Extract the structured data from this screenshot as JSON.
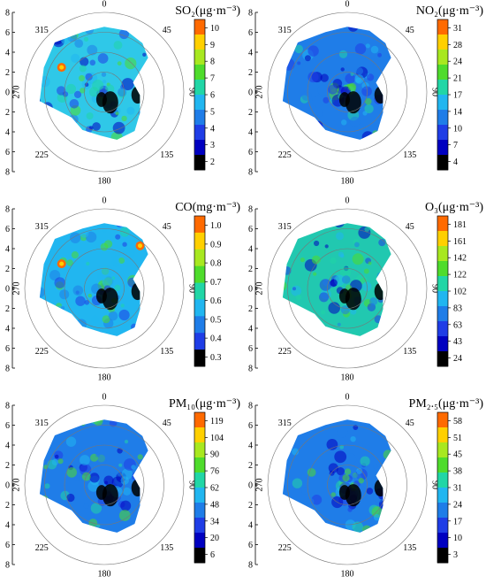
{
  "figure_caption": "",
  "chart_data": [
    {
      "type": "polar-heatmap",
      "title": "SO₂(μg·m⁻³)",
      "pollutant": "SO2",
      "unit": "μg·m⁻³",
      "angle_labels": [
        "0",
        "45",
        "90",
        "135",
        "180",
        "225",
        "270",
        "315"
      ],
      "radial_ticks": [
        "8",
        "6",
        "4",
        "2",
        "0",
        "2",
        "4",
        "6",
        "8"
      ],
      "colorbar_ticks": [
        "10",
        "9",
        "8",
        "7",
        "6",
        "5",
        "4",
        "3",
        "2"
      ],
      "colorbar_colors": [
        "#ff6a00",
        "#ffd000",
        "#a8e820",
        "#4fdc2c",
        "#21d6a6",
        "#21b6f0",
        "#1f7de8",
        "#1f3de6",
        "#0000c0",
        "#000000"
      ],
      "low_region_color": "#000000",
      "high_hotspots": 1,
      "dominant_color": "#2fc8e8"
    },
    {
      "type": "polar-heatmap",
      "title": "NO₂(μg·m⁻³)",
      "pollutant": "NO2",
      "unit": "μg·m⁻³",
      "angle_labels": [
        "0",
        "45",
        "90",
        "135",
        "180",
        "225",
        "270",
        "315"
      ],
      "radial_ticks": [
        "8",
        "6",
        "4",
        "2",
        "0",
        "2",
        "4",
        "6",
        "8"
      ],
      "colorbar_ticks": [
        "31",
        "28",
        "24",
        "21",
        "17",
        "14",
        "10",
        "7",
        "4"
      ],
      "colorbar_colors": [
        "#ff6a00",
        "#ffd000",
        "#a8e820",
        "#4fdc2c",
        "#21d6a6",
        "#21b6f0",
        "#1f7de8",
        "#1f3de6",
        "#0000c0",
        "#000000"
      ],
      "low_region_color": "#000000",
      "high_hotspots": 0,
      "dominant_color": "#1f7de8"
    },
    {
      "type": "polar-heatmap",
      "title": "CO(mg·m⁻³)",
      "pollutant": "CO",
      "unit": "mg·m⁻³",
      "angle_labels": [
        "0",
        "45",
        "90",
        "135",
        "180",
        "225",
        "270",
        "315"
      ],
      "radial_ticks": [
        "8",
        "6",
        "4",
        "2",
        "0",
        "2",
        "4",
        "6",
        "8"
      ],
      "colorbar_ticks": [
        "1.0",
        "0.9",
        "0.8",
        "0.7",
        "0.6",
        "0.5",
        "0.4",
        "0.3"
      ],
      "colorbar_colors": [
        "#ff6a00",
        "#ffd000",
        "#a8e820",
        "#4fdc2c",
        "#21d6a6",
        "#21b6f0",
        "#1f7de8",
        "#1f3de6",
        "#000000"
      ],
      "low_region_color": "#000000",
      "high_hotspots": 3,
      "dominant_color": "#21b6f0"
    },
    {
      "type": "polar-heatmap",
      "title": "O₃(μg·m⁻³)",
      "pollutant": "O3",
      "unit": "μg·m⁻³",
      "angle_labels": [
        "0",
        "45",
        "90",
        "135",
        "180",
        "225",
        "270",
        "315"
      ],
      "radial_ticks": [
        "8",
        "6",
        "4",
        "2",
        "0",
        "2",
        "4",
        "6",
        "8"
      ],
      "colorbar_ticks": [
        "181",
        "161",
        "142",
        "122",
        "102",
        "83",
        "63",
        "43",
        "24"
      ],
      "colorbar_colors": [
        "#ff6a00",
        "#ffd000",
        "#a8e820",
        "#4fdc2c",
        "#21d6a6",
        "#21b6f0",
        "#1f7de8",
        "#1f3de6",
        "#0000c0",
        "#000000"
      ],
      "low_region_color": "#000000",
      "high_hotspots": 0,
      "dominant_color": "#21c8b0"
    },
    {
      "type": "polar-heatmap",
      "title": "PM₁₀(μg·m⁻³)",
      "pollutant": "PM10",
      "unit": "μg·m⁻³",
      "angle_labels": [
        "0",
        "45",
        "90",
        "135",
        "180",
        "225",
        "270",
        "315"
      ],
      "radial_ticks": [
        "8",
        "6",
        "4",
        "2",
        "0",
        "2",
        "4",
        "6",
        "8"
      ],
      "colorbar_ticks": [
        "119",
        "104",
        "90",
        "76",
        "62",
        "48",
        "34",
        "20",
        "6"
      ],
      "colorbar_colors": [
        "#ff6a00",
        "#ffd000",
        "#a8e820",
        "#4fdc2c",
        "#21d6a6",
        "#21b6f0",
        "#1f7de8",
        "#1f3de6",
        "#0000c0",
        "#000000"
      ],
      "low_region_color": "#000000",
      "high_hotspots": 0,
      "dominant_color": "#1f7de8"
    },
    {
      "type": "polar-heatmap",
      "title": "PM₂.₅(μg·m⁻³)",
      "pollutant": "PM2.5",
      "unit": "μg·m⁻³",
      "angle_labels": [
        "0",
        "45",
        "90",
        "135",
        "180",
        "225",
        "270",
        "315"
      ],
      "radial_ticks": [
        "8",
        "6",
        "4",
        "2",
        "0",
        "2",
        "4",
        "6",
        "8"
      ],
      "colorbar_ticks": [
        "58",
        "51",
        "45",
        "38",
        "31",
        "24",
        "17",
        "10",
        "3"
      ],
      "colorbar_colors": [
        "#ff6a00",
        "#ffd000",
        "#a8e820",
        "#4fdc2c",
        "#21d6a6",
        "#21b6f0",
        "#1f7de8",
        "#1f3de6",
        "#0000c0",
        "#000000"
      ],
      "low_region_color": "#000000",
      "high_hotspots": 0,
      "dominant_color": "#1f7de8"
    }
  ]
}
